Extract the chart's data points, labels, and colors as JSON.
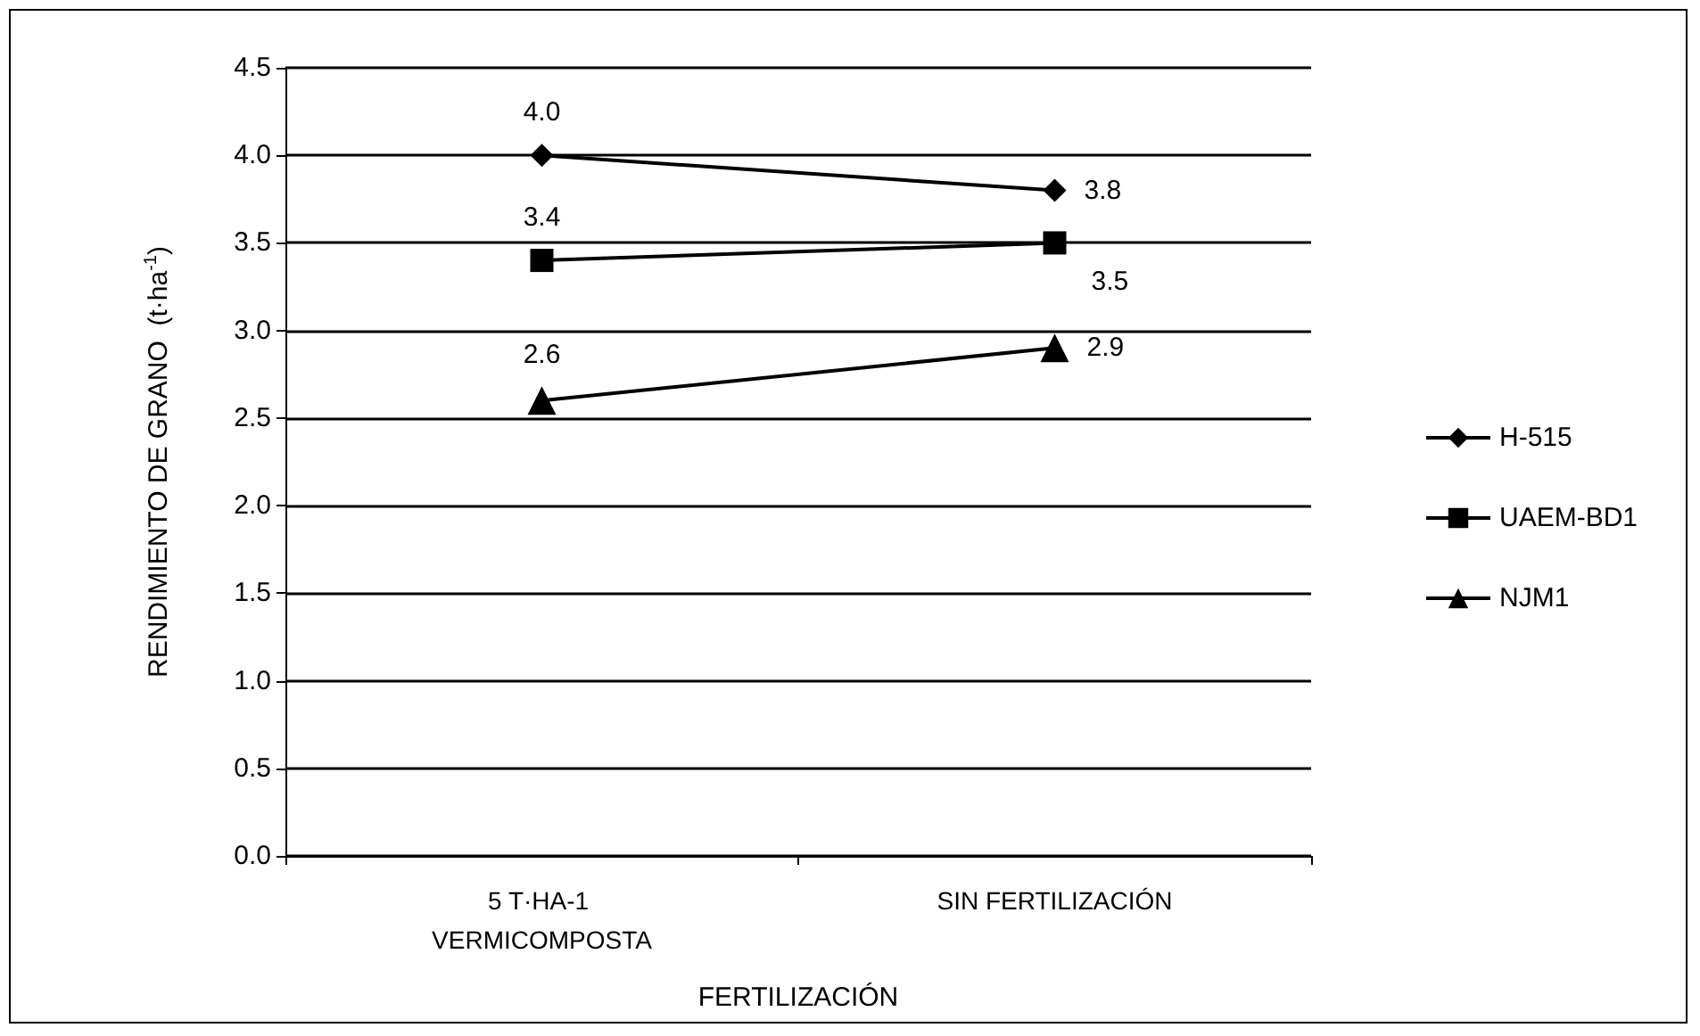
{
  "chart_data": {
    "type": "line",
    "xlabel": "FERTILIZACIÓN",
    "ylabel": "RENDIMIENTO DE GRANO  (t·ha$^{-1}$)",
    "categories": [
      "5 T·HA-1 VERMICOMPOSTA",
      "SIN FERTILIZACIÓN"
    ],
    "series": [
      {
        "name": "H-515",
        "color": "#000000",
        "marker": "diamond",
        "values": [
          4.0,
          3.8
        ],
        "value_labels": [
          "4.0",
          "3.8"
        ]
      },
      {
        "name": "UAEM-BD1",
        "color": "#000000",
        "marker": "square",
        "values": [
          3.4,
          3.5
        ],
        "value_labels": [
          "3.4",
          "3.5"
        ]
      },
      {
        "name": "NJM1",
        "color": "#000000",
        "marker": "triangle",
        "values": [
          2.6,
          2.9
        ],
        "value_labels": [
          "2.6",
          "2.9"
        ]
      }
    ],
    "ylim": [
      0,
      4.5
    ],
    "yticks": [
      {
        "value": 0,
        "label": "0.0"
      },
      0.5,
      {
        "value": 1,
        "label": "1.0"
      },
      1.5,
      {
        "value": 2,
        "label": "2.0"
      },
      2.5,
      {
        "value": 3,
        "label": "3.0"
      },
      3.5,
      {
        "value": 4,
        "label": "4.0"
      },
      4.5
    ],
    "grid": "y",
    "legend": "right",
    "line_style": "solid"
  }
}
